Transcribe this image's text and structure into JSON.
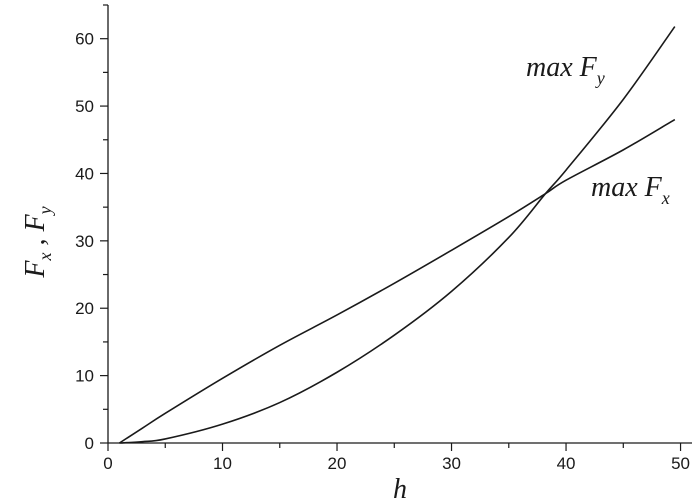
{
  "chart_data": {
    "type": "line",
    "title": "",
    "xlabel": "h",
    "ylabel": "F_x , F_y",
    "xlim": [
      0,
      51
    ],
    "ylim": [
      0,
      65
    ],
    "xticks": [
      0,
      10,
      20,
      30,
      40,
      50
    ],
    "yticks": [
      0,
      10,
      20,
      30,
      40,
      50,
      60
    ],
    "grid": false,
    "legend": "none",
    "series": [
      {
        "name": "max F_x",
        "x": [
          1,
          3,
          5,
          10,
          15,
          20,
          25,
          30,
          35,
          38.2,
          40,
          45,
          49.5
        ],
        "y": [
          0,
          2.2,
          4.4,
          9.6,
          14.5,
          19.0,
          23.7,
          28.6,
          33.6,
          37.0,
          39.0,
          43.5,
          48.0
        ]
      },
      {
        "name": "max F_y",
        "x": [
          1,
          3,
          5,
          10,
          15,
          20,
          25,
          30,
          35,
          38.2,
          40,
          45,
          49.5
        ],
        "y": [
          0,
          0.2,
          0.6,
          2.8,
          6.0,
          10.5,
          16.0,
          22.5,
          30.5,
          37.0,
          40.5,
          51.0,
          61.8
        ]
      }
    ]
  }
}
